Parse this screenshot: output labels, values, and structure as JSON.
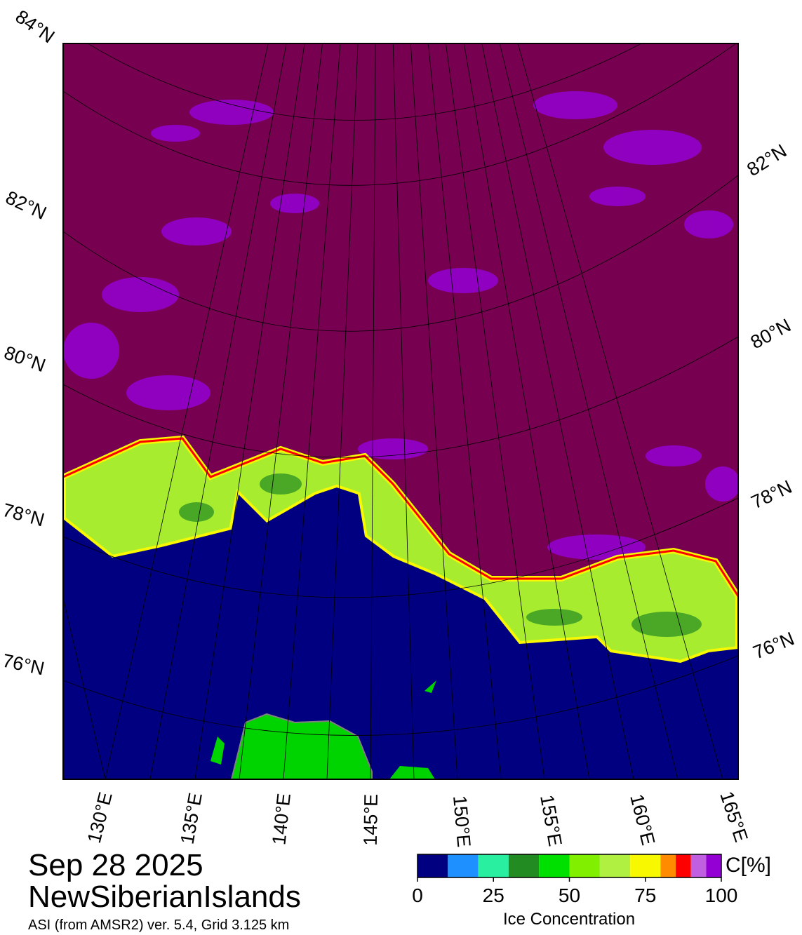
{
  "header": {
    "date": "Sep 28 2025",
    "region": "NewSiberianIslands",
    "subtitle": "ASI (from AMSR2) ver. 5.4,  Grid 3.125 km"
  },
  "map": {
    "lat_labels_left": [
      "84°N",
      "82°N",
      "80°N",
      "78°N",
      "76°N"
    ],
    "lat_labels_right": [
      "82°N",
      "80°N",
      "78°N",
      "76°N"
    ],
    "lon_labels": [
      "130°E",
      "135°E",
      "140°E",
      "145°E",
      "150°E",
      "155°E",
      "160°E",
      "165°E"
    ]
  },
  "colorbar": {
    "label": "Ice Concentration",
    "unit": "C[%]",
    "lim": [
      0,
      100
    ],
    "ticks": [
      0,
      25,
      50,
      75,
      100
    ],
    "bounds": [
      0,
      10,
      20,
      30,
      40,
      50,
      60,
      70,
      80,
      85,
      90,
      95,
      100
    ],
    "colors": [
      "#000080",
      "#1e90ff",
      "#28f0a0",
      "#228b22",
      "#00e000",
      "#80f000",
      "#b0f040",
      "#f8f800",
      "#ff8c00",
      "#ff0000",
      "#c060e0",
      "#9400d3"
    ]
  }
}
